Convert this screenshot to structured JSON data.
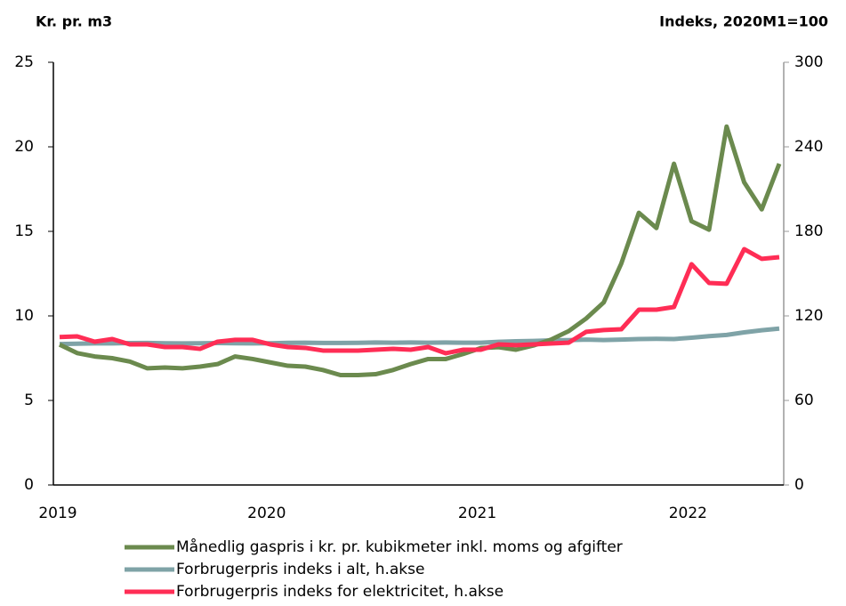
{
  "chart_data": {
    "type": "line",
    "ylabel": "Kr. pr. m3",
    "y2label": "Indeks, 2020M1=100",
    "categories": [
      "2019",
      null,
      null,
      null,
      null,
      null,
      null,
      null,
      null,
      null,
      null,
      null,
      "2020",
      null,
      null,
      null,
      null,
      null,
      null,
      null,
      null,
      null,
      null,
      null,
      "2021",
      null,
      null,
      null,
      null,
      null,
      null,
      null,
      null,
      null,
      null,
      null,
      "2022",
      null,
      null,
      null,
      null,
      null
    ],
    "ylim": [
      0,
      25
    ],
    "yticks": [
      0,
      5,
      10,
      15,
      20,
      25
    ],
    "y2lim": [
      0,
      300
    ],
    "y2ticks": [
      0,
      60,
      120,
      180,
      240,
      300
    ],
    "series": [
      {
        "name": "Månedlig gaspris i kr. pr. kubikmeter inkl. moms og afgifter",
        "color": "#6b8a4e",
        "values": [
          8.3,
          7.8,
          7.6,
          7.5,
          7.3,
          6.9,
          6.95,
          6.9,
          7.0,
          7.15,
          7.6,
          7.45,
          7.25,
          7.05,
          7.0,
          6.8,
          6.5,
          6.5,
          6.55,
          6.8,
          7.15,
          7.45,
          7.45,
          7.75,
          8.1,
          8.15,
          8.0,
          8.25,
          8.6,
          9.1,
          9.85,
          10.8,
          13.1,
          16.1,
          15.2,
          19.0,
          15.6,
          15.1,
          21.2,
          17.9,
          16.3,
          19.0
        ]
      },
      {
        "name": "Forbrugerpris indeks i alt, h.akse",
        "color": "#7fa3a7",
        "axis": "y2",
        "values": [
          100,
          100.3,
          100.5,
          100.5,
          100.7,
          100.8,
          100.6,
          100.5,
          100.6,
          100.7,
          100.6,
          100.5,
          100.6,
          100.9,
          101.0,
          100.8,
          100.8,
          100.9,
          101.1,
          101.0,
          101.1,
          101.0,
          101.1,
          101.0,
          101.0,
          101.6,
          102.0,
          102.2,
          102.6,
          102.8,
          103.2,
          102.9,
          103.2,
          103.6,
          103.7,
          103.6,
          104.5,
          105.6,
          106.5,
          108.3,
          109.8,
          111.0
        ]
      },
      {
        "name": "Forbrugerpris indeks for elektricitet, h.akse",
        "color": "#ff2d55",
        "axis": "y2",
        "values": [
          105,
          105.5,
          101.7,
          103.6,
          99.8,
          99.8,
          97.9,
          97.9,
          96.6,
          101.7,
          103,
          103,
          99.8,
          97.9,
          97.3,
          95.4,
          95.4,
          95.4,
          96,
          96.6,
          96,
          97.9,
          93.5,
          96,
          96,
          99.8,
          99.2,
          99.8,
          100.4,
          101,
          108.7,
          110,
          110.5,
          124.4,
          124.4,
          126.3,
          156.7,
          143.4,
          142.8,
          167.4,
          160.5,
          161.7
        ]
      }
    ]
  }
}
